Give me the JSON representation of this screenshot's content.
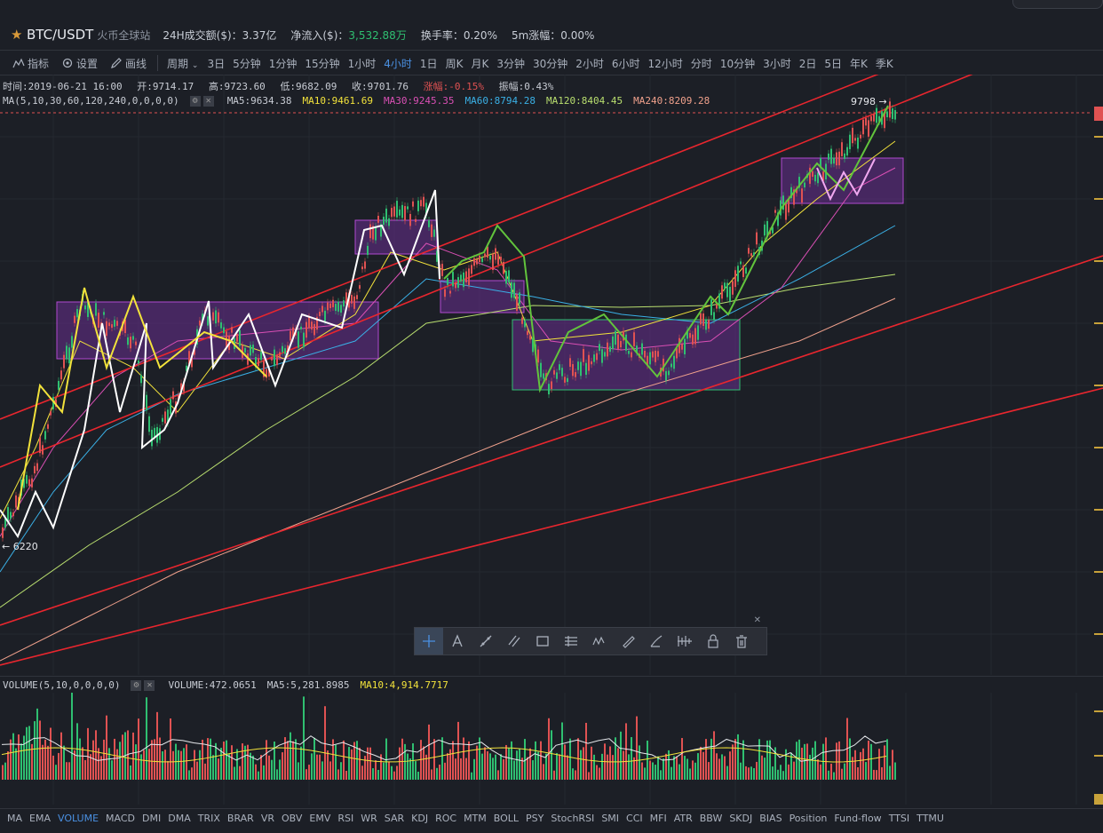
{
  "header": {
    "pair": "BTC/USDT",
    "exchange": "火币全球站",
    "stats": [
      {
        "label": "24H成交额($)：",
        "value": "3.37亿",
        "color": "#c9ced7"
      },
      {
        "label": "净流入($)：",
        "value": "3,532.88万",
        "color": "#2fbf71"
      },
      {
        "label": "换手率：",
        "value": "0.20%",
        "color": "#c9ced7"
      },
      {
        "label": "5m涨幅：",
        "value": "0.00%",
        "color": "#c9ced7"
      }
    ]
  },
  "toolbar": {
    "indicators_label": "指标",
    "settings_label": "设置",
    "draw_label": "画线",
    "cycle_label": "周期",
    "periods": [
      "3日",
      "5分钟",
      "1分钟",
      "15分钟",
      "1小时",
      "4小时",
      "1日",
      "周K",
      "月K",
      "3分钟",
      "30分钟",
      "2小时",
      "6小时",
      "12小时",
      "分时",
      "10分钟",
      "3小时",
      "2日",
      "5日",
      "年K",
      "季K"
    ],
    "active_period": "4小时"
  },
  "ohlc": {
    "time": "时间:2019-06-21 16:00",
    "open": "开:9714.17",
    "high": "高:9723.60",
    "low": "低:9682.09",
    "close": "收:9701.76",
    "change": "涨幅:-0.15%",
    "amplitude": "振幅:0.43%"
  },
  "ma": {
    "label": "MA(5,10,30,60,120,240,0,0,0,0)",
    "items": [
      {
        "text": "MA5:9634.38",
        "color": "#c8ccd4"
      },
      {
        "text": "MA10:9461.69",
        "color": "#f2e23b"
      },
      {
        "text": "MA30:9245.35",
        "color": "#d94fb4"
      },
      {
        "text": "MA60:8794.28",
        "color": "#3ab0e6"
      },
      {
        "text": "MA120:8404.45",
        "color": "#b9df6f"
      },
      {
        "text": "MA240:8209.28",
        "color": "#f0a18c"
      }
    ]
  },
  "price_marks": {
    "high_label": "9798 →",
    "low_label": "← 6220"
  },
  "volume": {
    "label": "VOLUME(5,10,0,0,0,0)",
    "value": "VOLUME:472.0651",
    "ma5": "MA5:5,281.8985",
    "ma10": "MA10:4,914.7717",
    "ma10_color": "#f2e23b"
  },
  "drawing_tools": [
    "crosshair-icon",
    "text-icon",
    "trend-line-icon",
    "parallel-channel-icon",
    "rectangle-icon",
    "fibonacci-icon",
    "wave-icon",
    "ruler-icon",
    "brush-icon",
    "pattern-icon",
    "lock-icon",
    "trash-icon"
  ],
  "indicators": [
    "MA",
    "EMA",
    "VOLUME",
    "MACD",
    "DMI",
    "DMA",
    "TRIX",
    "BRAR",
    "VR",
    "OBV",
    "EMV",
    "RSI",
    "WR",
    "SAR",
    "KDJ",
    "ROC",
    "MTM",
    "BOLL",
    "PSY",
    "StochRSI",
    "SMI",
    "CCI",
    "MFI",
    "ATR",
    "BBW",
    "SKDJ",
    "BIAS",
    "Position",
    "Fund-flow",
    "TTSI",
    "TTMU"
  ],
  "active_indicator": "VOLUME",
  "colors": {
    "background": "#1c1f26",
    "up": "#2fbf71",
    "down": "#e05252",
    "trendline": "#e8262e",
    "box_fill": "#6a2d8f",
    "accent": "#4a90e2"
  }
}
